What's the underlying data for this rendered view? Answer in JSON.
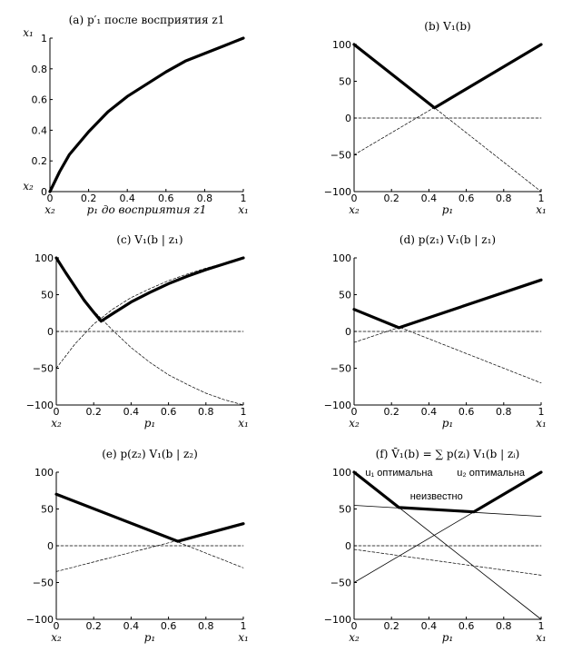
{
  "chart_data": [
    {
      "id": "a",
      "type": "line",
      "title": "(a)   p′₁ после восприятия z1",
      "xlabel": "p₁ до восприятия z1",
      "ylabel": "",
      "xlim": [
        0,
        1
      ],
      "ylim": [
        0,
        1
      ],
      "xticks": [
        0,
        0.2,
        0.4,
        0.6,
        0.8,
        1
      ],
      "yticks": [
        0,
        0.2,
        0.4,
        0.6,
        0.8,
        1
      ],
      "x_end_labels": [
        "x₂",
        "x₁"
      ],
      "y_end_labels": [
        "x₂",
        "x₁"
      ],
      "series": [
        {
          "style": "bold",
          "x": [
            0,
            0.05,
            0.1,
            0.2,
            0.3,
            0.4,
            0.5,
            0.6,
            0.7,
            0.8,
            0.9,
            1
          ],
          "values": [
            0,
            0.13,
            0.24,
            0.39,
            0.52,
            0.62,
            0.7,
            0.78,
            0.85,
            0.9,
            0.95,
            1
          ]
        }
      ]
    },
    {
      "id": "b",
      "type": "line",
      "title": "(b)   V₁(b)",
      "xlabel": "p₁",
      "xlim": [
        0,
        1
      ],
      "ylim": [
        -100,
        100
      ],
      "xticks": [
        0,
        0.2,
        0.4,
        0.6,
        0.8,
        1
      ],
      "yticks": [
        -100,
        -50,
        0,
        50,
        100
      ],
      "x_end_labels": [
        "x₂",
        "x₁"
      ],
      "series": [
        {
          "style": "bold",
          "x": [
            0,
            0.43,
            1
          ],
          "values": [
            100,
            14,
            100
          ]
        },
        {
          "style": "dashed",
          "x": [
            0,
            1
          ],
          "values": [
            100,
            -100
          ]
        },
        {
          "style": "dashed",
          "x": [
            0,
            1
          ],
          "values": [
            -50,
            100
          ]
        },
        {
          "style": "dashed",
          "x": [
            0,
            1
          ],
          "values": [
            0,
            0
          ]
        }
      ]
    },
    {
      "id": "c",
      "type": "line",
      "title": "(c)   V₁(b | z₁)",
      "xlabel": "p₁",
      "xlim": [
        0,
        1
      ],
      "ylim": [
        -100,
        100
      ],
      "xticks": [
        0,
        0.2,
        0.4,
        0.6,
        0.8,
        1
      ],
      "yticks": [
        -100,
        -50,
        0,
        50,
        100
      ],
      "x_end_labels": [
        "x₂",
        "x₁"
      ],
      "series": [
        {
          "style": "bold",
          "x": [
            0,
            0.05,
            0.1,
            0.15,
            0.2,
            0.24,
            0.3,
            0.4,
            0.5,
            0.6,
            0.7,
            0.8,
            0.9,
            1
          ],
          "values": [
            100,
            80,
            61,
            42,
            26,
            14,
            24,
            40,
            53,
            65,
            75,
            84,
            92,
            100
          ]
        },
        {
          "style": "dashed",
          "x": [
            0,
            0.1,
            0.2,
            0.3,
            0.4,
            0.5,
            0.6,
            0.7,
            0.8,
            0.9,
            1
          ],
          "values": [
            100,
            61,
            28,
            2,
            -22,
            -42,
            -59,
            -72,
            -84,
            -93,
            -100
          ]
        },
        {
          "style": "dashed",
          "x": [
            0,
            0.1,
            0.2,
            0.3,
            0.4,
            0.5,
            0.6,
            0.7,
            0.8,
            0.9,
            1
          ],
          "values": [
            -50,
            -17,
            10,
            30,
            46,
            58,
            69,
            78,
            86,
            93,
            100
          ]
        },
        {
          "style": "dashed",
          "x": [
            0,
            1
          ],
          "values": [
            0,
            0
          ]
        }
      ]
    },
    {
      "id": "d",
      "type": "line",
      "title": "(d)   p(z₁) V₁(b | z₁)",
      "xlabel": "p₁",
      "xlim": [
        0,
        1
      ],
      "ylim": [
        -100,
        100
      ],
      "xticks": [
        0,
        0.2,
        0.4,
        0.6,
        0.8,
        1
      ],
      "yticks": [
        -100,
        -50,
        0,
        50,
        100
      ],
      "x_end_labels": [
        "x₂",
        "x₁"
      ],
      "series": [
        {
          "style": "bold",
          "x": [
            0,
            0.24,
            1
          ],
          "values": [
            30,
            5,
            70
          ]
        },
        {
          "style": "dashed",
          "x": [
            0,
            1
          ],
          "values": [
            30,
            -70
          ]
        },
        {
          "style": "dashed",
          "x": [
            0,
            1
          ],
          "values": [
            -15,
            70
          ]
        },
        {
          "style": "dashed",
          "x": [
            0,
            1
          ],
          "values": [
            0,
            0
          ]
        }
      ]
    },
    {
      "id": "e",
      "type": "line",
      "title": "(e)   p(z₂) V₁(b | z₂)",
      "xlabel": "p₁",
      "xlim": [
        0,
        1
      ],
      "ylim": [
        -100,
        100
      ],
      "xticks": [
        0,
        0.2,
        0.4,
        0.6,
        0.8,
        1
      ],
      "yticks": [
        -100,
        -50,
        0,
        50,
        100
      ],
      "x_end_labels": [
        "x₂",
        "x₁"
      ],
      "series": [
        {
          "style": "bold",
          "x": [
            0,
            0.65,
            1
          ],
          "values": [
            70,
            6,
            30
          ]
        },
        {
          "style": "dashed",
          "x": [
            0,
            1
          ],
          "values": [
            70,
            -30
          ]
        },
        {
          "style": "dashed",
          "x": [
            0,
            1
          ],
          "values": [
            -35,
            30
          ]
        },
        {
          "style": "dashed",
          "x": [
            0,
            1
          ],
          "values": [
            0,
            0
          ]
        }
      ]
    },
    {
      "id": "f",
      "type": "line",
      "title": "(f)   V̄₁(b) = ∑ p(zᵢ) V₁(b | zᵢ)",
      "xlabel": "p₁",
      "xlim": [
        0,
        1
      ],
      "ylim": [
        -100,
        100
      ],
      "xticks": [
        0,
        0.2,
        0.4,
        0.6,
        0.8,
        1
      ],
      "yticks": [
        -100,
        -50,
        0,
        50,
        100
      ],
      "x_end_labels": [
        "x₂",
        "x₁"
      ],
      "annotations": [
        {
          "text": "u₁ оптимальна",
          "x": 0.06,
          "y": 95
        },
        {
          "text": "u₂ оптимальна",
          "x": 0.55,
          "y": 95
        },
        {
          "text": "неизвестно",
          "x": 0.3,
          "y": 63
        }
      ],
      "series": [
        {
          "style": "bold",
          "x": [
            0,
            0.24,
            0.64,
            1
          ],
          "values": [
            100,
            52,
            46,
            100
          ]
        },
        {
          "style": "thin",
          "x": [
            0,
            1
          ],
          "values": [
            55,
            40
          ]
        },
        {
          "style": "thin",
          "x": [
            0,
            1
          ],
          "values": [
            100,
            -100
          ]
        },
        {
          "style": "thin",
          "x": [
            0,
            1
          ],
          "values": [
            -50,
            100
          ]
        },
        {
          "style": "dashed",
          "x": [
            0,
            1
          ],
          "values": [
            -5,
            -40
          ]
        },
        {
          "style": "dashed",
          "x": [
            0,
            1
          ],
          "values": [
            0,
            0
          ]
        }
      ]
    }
  ]
}
